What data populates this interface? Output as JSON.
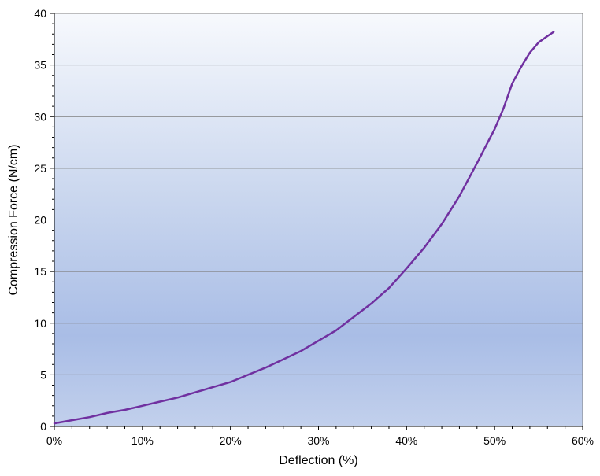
{
  "chart_data": {
    "type": "line",
    "title": "",
    "xlabel": "Deflection (%)",
    "ylabel": "Compression Force (N/cm)",
    "xlim": [
      0,
      60
    ],
    "ylim": [
      0,
      40
    ],
    "x_tick_labels": [
      "0%",
      "10%",
      "20%",
      "30%",
      "40%",
      "50%",
      "60%"
    ],
    "x_ticks": [
      0,
      10,
      20,
      30,
      40,
      50,
      60
    ],
    "y_tick_labels": [
      "0",
      "5",
      "10",
      "15",
      "20",
      "25",
      "30",
      "35",
      "40"
    ],
    "y_ticks": [
      0,
      5,
      10,
      15,
      20,
      25,
      30,
      35,
      40
    ],
    "grid": "horizontal",
    "legend": "none",
    "series": [
      {
        "color": "#7030a0",
        "x": [
          0,
          2,
          4,
          6,
          8,
          10,
          12,
          14,
          16,
          18,
          20,
          22,
          24,
          26,
          28,
          30,
          32,
          34,
          36,
          38,
          40,
          42,
          44,
          46,
          48,
          50,
          51,
          52,
          53,
          54,
          55,
          56,
          56.7
        ],
        "y": [
          0.3,
          0.6,
          0.9,
          1.3,
          1.6,
          2.0,
          2.4,
          2.8,
          3.3,
          3.8,
          4.3,
          5.0,
          5.7,
          6.5,
          7.3,
          8.3,
          9.3,
          10.6,
          11.9,
          13.4,
          15.3,
          17.3,
          19.6,
          22.3,
          25.5,
          28.8,
          30.8,
          33.2,
          34.8,
          36.2,
          37.2,
          37.8,
          38.2
        ]
      }
    ]
  }
}
